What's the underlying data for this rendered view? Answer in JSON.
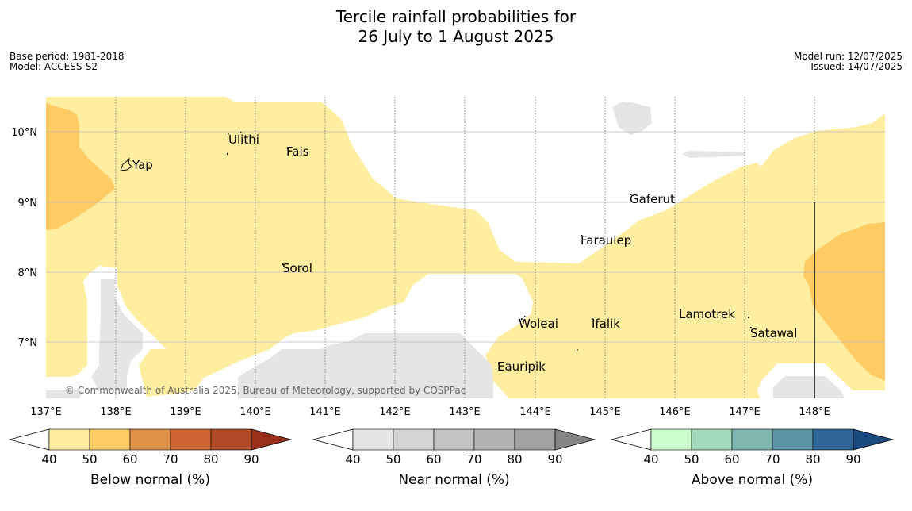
{
  "title": {
    "line1": "Tercile rainfall probabilities for",
    "line2": "26 July to 1 August 2025"
  },
  "meta_left": {
    "base_period": "Base period: 1981-2018",
    "model": "Model: ACCESS-S2"
  },
  "meta_right": {
    "model_run": "Model run: 12/07/2025",
    "issued": "Issued: 14/07/2025"
  },
  "map": {
    "copyright": "© Commonwealth of Australia 2025, Bureau of Meteorology, supported by COSPPac",
    "longitude_labels": [
      "137°E",
      "138°E",
      "139°E",
      "140°E",
      "141°E",
      "142°E",
      "143°E",
      "144°E",
      "145°E",
      "146°E",
      "147°E",
      "148°E"
    ],
    "latitude_labels": [
      "10°N",
      "9°N",
      "8°N",
      "7°N"
    ],
    "places": [
      "Yap",
      "Ulithi",
      "Fais",
      "Gaferut",
      "Faraulep",
      "Sorol",
      "Woleai",
      "Ifalik",
      "Lamotrek",
      "Satawal",
      "Eauripik"
    ]
  },
  "colorbars": [
    {
      "label": "Below normal (%)",
      "ticks": [
        "40",
        "50",
        "60",
        "70",
        "80",
        "90"
      ],
      "colors": [
        "#ffffff",
        "#ffeda0",
        "#fecb65",
        "#e0924a",
        "#cc6330",
        "#b04925",
        "#9a2f1a"
      ]
    },
    {
      "label": "Near normal (%)",
      "ticks": [
        "40",
        "50",
        "60",
        "70",
        "80",
        "90"
      ],
      "colors": [
        "#ffffff",
        "#e5e5e5",
        "#d4d4d4",
        "#c4c4c4",
        "#b3b3b3",
        "#a2a2a2",
        "#858585"
      ]
    },
    {
      "label": "Above normal (%)",
      "ticks": [
        "40",
        "50",
        "60",
        "70",
        "80",
        "90"
      ],
      "colors": [
        "#ffffff",
        "#ccffcc",
        "#a4dbbd",
        "#7fb6b0",
        "#5a93a3",
        "#2f6497",
        "#1a4a80"
      ]
    }
  ]
}
